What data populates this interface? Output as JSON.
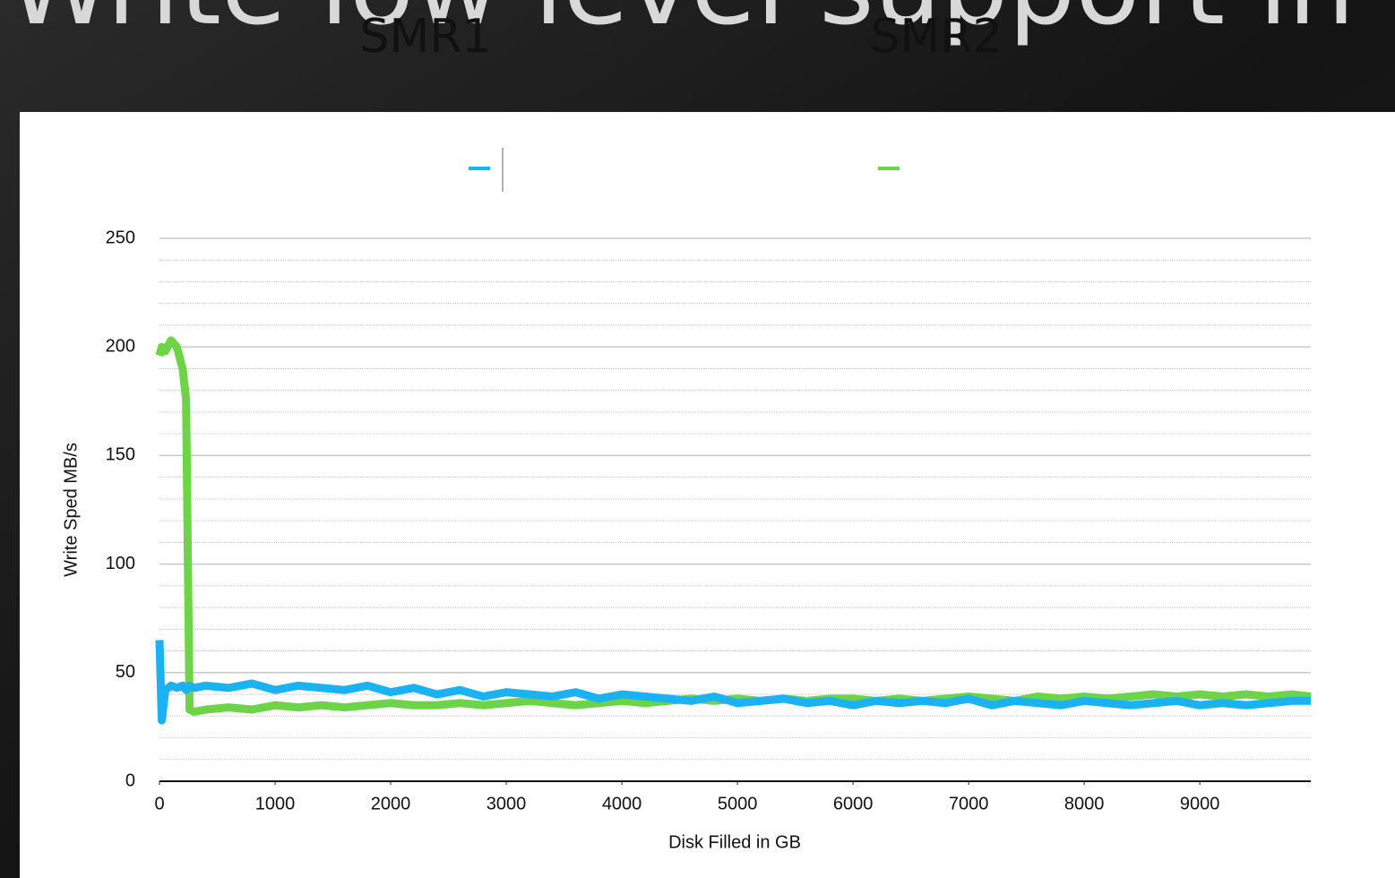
{
  "slide_title": "Write low level support in Lc",
  "chart_data": {
    "type": "line",
    "x_label": "Disk Filled in GB",
    "y_label": "Write Sped MB/s",
    "x": [
      0,
      20,
      50,
      100,
      150,
      200,
      230,
      260,
      300,
      400,
      600,
      800,
      1000,
      1200,
      1400,
      1600,
      1800,
      2000,
      2200,
      2400,
      2600,
      2800,
      3000,
      3200,
      3400,
      3600,
      3800,
      4000,
      4200,
      4400,
      4600,
      4800,
      5000,
      5200,
      5400,
      5600,
      5800,
      6000,
      6200,
      6400,
      6600,
      6800,
      7000,
      7200,
      7400,
      7600,
      7800,
      8000,
      8200,
      8400,
      8600,
      8800,
      9000,
      9200,
      9400,
      9600,
      9800,
      9960
    ],
    "series": [
      {
        "name": "SMR1",
        "color": "#1ab2f2",
        "values": [
          65,
          28,
          42,
          44,
          43,
          44,
          42,
          44,
          43,
          44,
          43,
          45,
          42,
          44,
          43,
          42,
          44,
          41,
          43,
          40,
          42,
          39,
          41,
          40,
          39,
          41,
          38,
          40,
          39,
          38,
          37,
          39,
          36,
          37,
          38,
          36,
          37,
          35,
          37,
          36,
          37,
          36,
          38,
          35,
          37,
          36,
          35,
          37,
          36,
          35,
          36,
          37,
          35,
          36,
          35,
          36,
          37,
          37
        ]
      },
      {
        "name": "SMR2",
        "color": "#6dd447",
        "values": [
          196,
          200,
          198,
          203,
          200,
          190,
          176,
          33,
          32,
          33,
          34,
          33,
          35,
          34,
          35,
          34,
          35,
          36,
          35,
          35,
          36,
          35,
          36,
          37,
          36,
          35,
          36,
          37,
          36,
          37,
          38,
          37,
          38,
          37,
          38,
          37,
          38,
          38,
          37,
          38,
          37,
          38,
          39,
          38,
          37,
          39,
          38,
          39,
          38,
          39,
          40,
          39,
          40,
          39,
          40,
          39,
          40,
          39
        ]
      }
    ],
    "xlim": [
      0,
      9960
    ],
    "ylim": [
      0,
      250
    ],
    "xticks": [
      0,
      1000,
      2000,
      3000,
      4000,
      5000,
      6000,
      7000,
      8000,
      9000
    ],
    "yticks": [
      0,
      50,
      100,
      150,
      200,
      250
    ],
    "minor_yticks": [
      10,
      20,
      30,
      40,
      60,
      70,
      80,
      90,
      110,
      120,
      130,
      140,
      160,
      170,
      180,
      190,
      210,
      220,
      230,
      240
    ],
    "grid": true
  }
}
